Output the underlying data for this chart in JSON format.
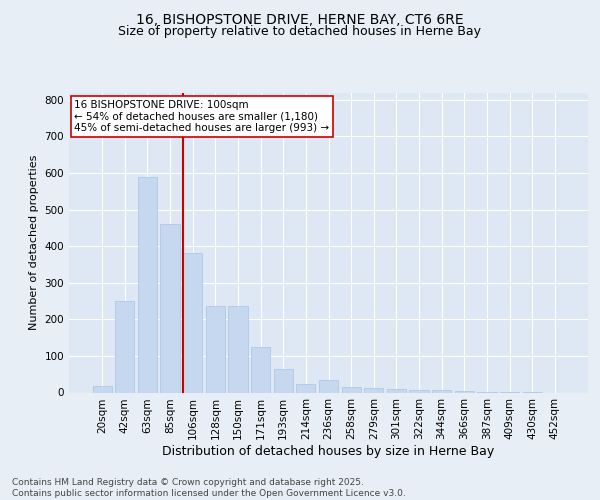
{
  "title": "16, BISHOPSTONE DRIVE, HERNE BAY, CT6 6RE",
  "subtitle": "Size of property relative to detached houses in Herne Bay",
  "xlabel": "Distribution of detached houses by size in Herne Bay",
  "ylabel": "Number of detached properties",
  "categories": [
    "20sqm",
    "42sqm",
    "63sqm",
    "85sqm",
    "106sqm",
    "128sqm",
    "150sqm",
    "171sqm",
    "193sqm",
    "214sqm",
    "236sqm",
    "258sqm",
    "279sqm",
    "301sqm",
    "322sqm",
    "344sqm",
    "366sqm",
    "387sqm",
    "409sqm",
    "430sqm",
    "452sqm"
  ],
  "values": [
    17,
    250,
    590,
    460,
    380,
    237,
    237,
    125,
    65,
    22,
    33,
    14,
    12,
    10,
    8,
    6,
    3,
    2,
    1,
    1,
    0
  ],
  "bar_color": "#c5d8ef",
  "bar_edge_color": "#a8c4e0",
  "vline_color": "#cc0000",
  "vline_x_index": 4,
  "annotation_text": "16 BISHOPSTONE DRIVE: 100sqm\n← 54% of detached houses are smaller (1,180)\n45% of semi-detached houses are larger (993) →",
  "annotation_box_facecolor": "#ffffff",
  "annotation_box_edgecolor": "#cc0000",
  "figure_facecolor": "#e8eef5",
  "axes_facecolor": "#dde8f4",
  "grid_color": "#ffffff",
  "ylim": [
    0,
    820
  ],
  "yticks": [
    0,
    100,
    200,
    300,
    400,
    500,
    600,
    700,
    800
  ],
  "title_fontsize": 10,
  "subtitle_fontsize": 9,
  "xlabel_fontsize": 9,
  "ylabel_fontsize": 8,
  "tick_fontsize": 7.5,
  "annotation_fontsize": 7.5,
  "footer_fontsize": 6.5,
  "footer_text": "Contains HM Land Registry data © Crown copyright and database right 2025.\nContains public sector information licensed under the Open Government Licence v3.0."
}
